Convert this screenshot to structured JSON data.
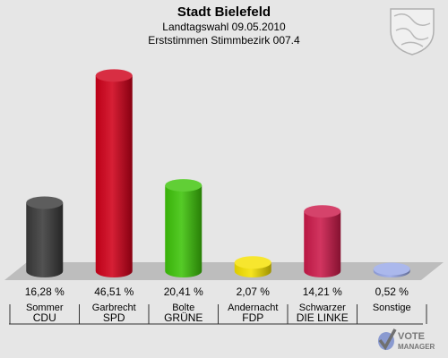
{
  "header": {
    "title": "Stadt Bielefeld",
    "subtitle1": "Landtagswahl 09.05.2010",
    "subtitle2": "Erststimmen Stimmbezirk 007.4"
  },
  "chart_data": {
    "type": "bar",
    "categories": [
      "Sommer",
      "Garbrecht",
      "Bolte",
      "Andernacht",
      "Schwarzer",
      "Sonstige"
    ],
    "parties": [
      "CDU",
      "SPD",
      "GRÜNE",
      "FDP",
      "DIE LINKE",
      ""
    ],
    "values": [
      16.28,
      46.51,
      20.41,
      2.07,
      14.21,
      0.52
    ],
    "value_labels": [
      "16,28 %",
      "46,51 %",
      "20,41 %",
      "2,07 %",
      "14,21 %",
      "0,52 %"
    ],
    "colors": [
      "#3a3a3a",
      "#d0001a",
      "#3ec40a",
      "#f5e100",
      "#cc1a4a",
      "#98a8e8"
    ],
    "ylim": [
      0,
      50
    ]
  },
  "logo": {
    "line1": "VOTE",
    "line2": "MANAGER"
  },
  "crest_icon": "coat-of-arms-icon"
}
